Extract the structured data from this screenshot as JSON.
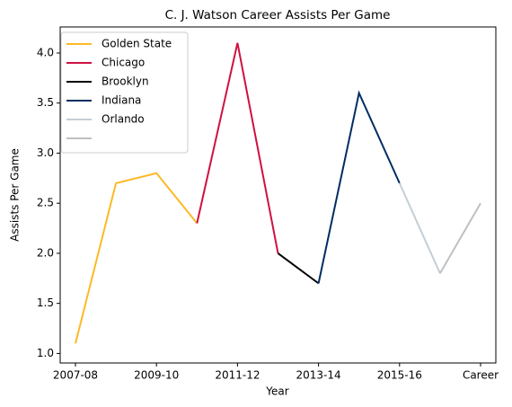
{
  "chart_data": {
    "type": "line",
    "title": "C. J. Watson Career Assists Per Game",
    "xlabel": "Year",
    "ylabel": "Assists Per Game",
    "categories": [
      "2007-08",
      null,
      "2009-10",
      null,
      "2011-12",
      null,
      "2013-14",
      null,
      "2015-16",
      null,
      "Career"
    ],
    "series": [
      {
        "name": "Golden State",
        "color": "#FDB927",
        "values": [
          1.1,
          2.7,
          2.8,
          2.3,
          null,
          null,
          null,
          null,
          null,
          null,
          null
        ]
      },
      {
        "name": "Chicago",
        "color": "#CE1141",
        "values": [
          null,
          null,
          null,
          2.3,
          4.1,
          2.0,
          null,
          null,
          null,
          null,
          null
        ]
      },
      {
        "name": "Brooklyn",
        "color": "#000000",
        "values": [
          null,
          null,
          null,
          null,
          null,
          2.0,
          1.7,
          null,
          null,
          null,
          null
        ]
      },
      {
        "name": "Indiana",
        "color": "#002D62",
        "values": [
          null,
          null,
          null,
          null,
          null,
          null,
          1.7,
          3.6,
          2.7,
          null,
          null
        ]
      },
      {
        "name": "Orlando",
        "color": "#C4CED4",
        "values": [
          null,
          null,
          null,
          null,
          null,
          null,
          null,
          null,
          2.7,
          1.8,
          null
        ]
      },
      {
        "color": "#BEC0C2",
        "values": [
          null,
          null,
          null,
          null,
          null,
          null,
          null,
          null,
          null,
          1.8,
          2.5
        ]
      }
    ],
    "ylim": [
      0.905,
      4.26
    ],
    "yticks": [
      {
        "value": 1.0,
        "label": "1.0"
      },
      {
        "value": 1.5,
        "label": "1.5"
      },
      {
        "value": 2.0,
        "label": "2.0"
      },
      {
        "value": 2.5,
        "label": "2.5"
      },
      {
        "value": 3.0,
        "label": "3.0"
      },
      {
        "value": 3.5,
        "label": "3.5"
      },
      {
        "value": 4.0,
        "label": "4.0"
      }
    ],
    "legend": "upper left"
  }
}
